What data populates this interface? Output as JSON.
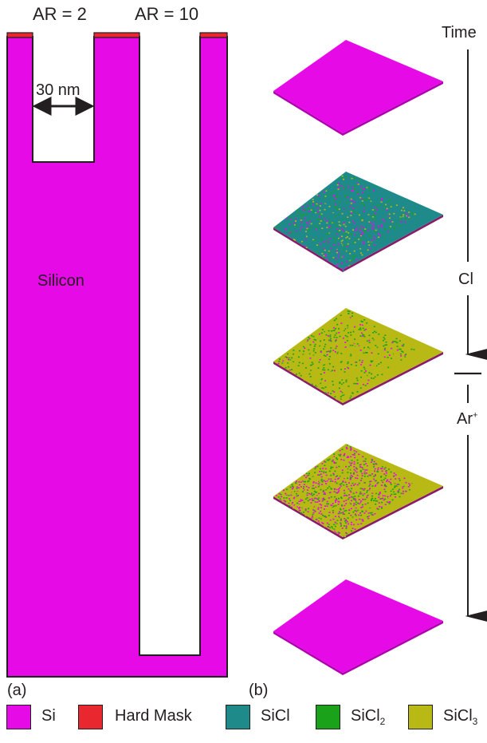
{
  "panel_a": {
    "label": "(a)",
    "trench_labels": [
      "AR = 2",
      "AR = 10"
    ],
    "width_label": "30 nm",
    "material_label": "Silicon"
  },
  "panel_b": {
    "label": "(b)",
    "time_label": "Time",
    "phase1_label": "Cl",
    "phase2_label": "Ar",
    "phase2_superscript": "+"
  },
  "legend": [
    {
      "label": "Si",
      "sub": "",
      "color": "#e60ae6"
    },
    {
      "label": "Hard Mask",
      "sub": "",
      "color": "#e8282e"
    },
    {
      "label": "SiCl",
      "sub": "",
      "color": "#1f8a8a"
    },
    {
      "label": "SiCl",
      "sub": "2",
      "color": "#1aa31a"
    },
    {
      "label": "SiCl",
      "sub": "3",
      "color": "#b9b915"
    }
  ],
  "colors": {
    "si": "#e60ae6",
    "hard_mask": "#e8282e",
    "sicl": "#1f8a8a",
    "sicl2": "#1aa31a",
    "sicl3": "#b9b915",
    "outline": "#231f20"
  }
}
